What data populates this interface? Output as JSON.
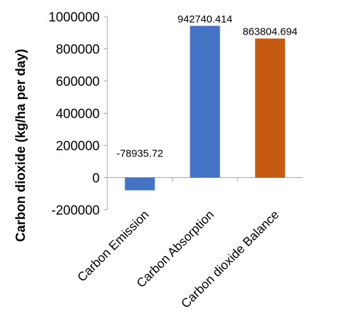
{
  "chart_data": {
    "type": "bar",
    "ylabel": "Carbon dioxide (kg/ha per day)",
    "xlabel": "",
    "ylim": [
      -200000,
      1000000
    ],
    "yticks": [
      -200000,
      0,
      200000,
      400000,
      600000,
      800000,
      1000000
    ],
    "ytick_labels": [
      "-200000",
      "0",
      "200000",
      "400000",
      "600000",
      "800000",
      "1000000"
    ],
    "grid": false,
    "categories": [
      "Carbon Emission",
      "Carbon Absorption",
      "Carbon dioxide Balance"
    ],
    "values": [
      -78935.72,
      942740.414,
      863804.694
    ],
    "value_labels": [
      "-78935.72",
      "942740.414",
      "863804.694"
    ],
    "colors": [
      "#4472C4",
      "#4472C4",
      "#C55A11"
    ]
  }
}
